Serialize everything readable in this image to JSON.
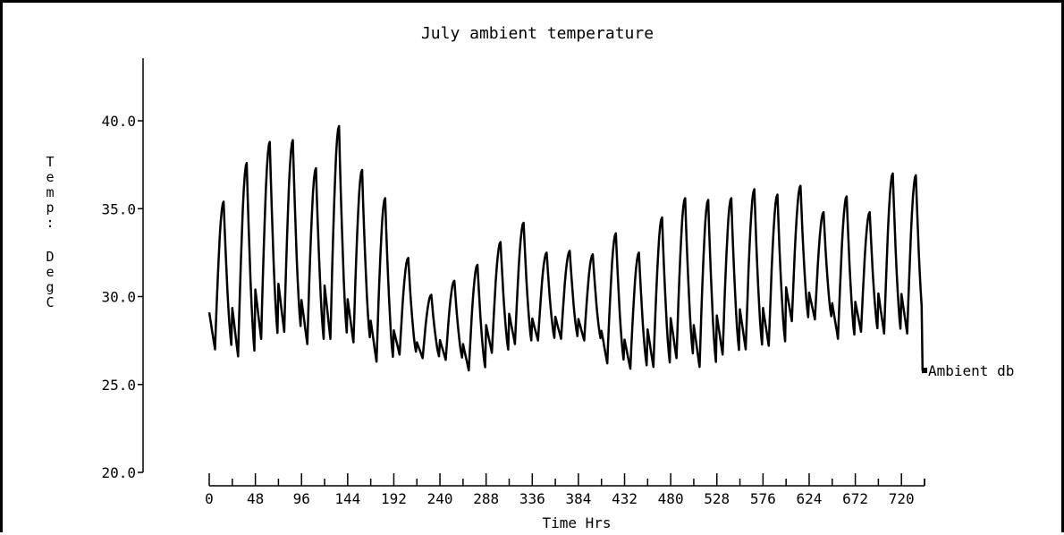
{
  "chart_data": {
    "type": "line",
    "title": "July ambient temperature",
    "xlabel": "Time Hrs",
    "ylabel": "Temp: DegC",
    "ylabel_chars": [
      "T",
      "e",
      "m",
      "p",
      ":",
      "D",
      "e",
      "g",
      "C"
    ],
    "xlim": [
      0,
      744
    ],
    "ylim": [
      20,
      44
    ],
    "x_ticks": [
      0,
      48,
      96,
      144,
      192,
      240,
      288,
      336,
      384,
      432,
      480,
      528,
      576,
      624,
      672,
      720
    ],
    "x_tick_labels": [
      "0",
      "48",
      "96",
      "144",
      "192",
      "240",
      "288",
      "336",
      "384",
      "432",
      "480",
      "528",
      "576",
      "624",
      "672",
      "720"
    ],
    "y_ticks": [
      20,
      25,
      30,
      35,
      40
    ],
    "y_tick_labels": [
      "20.0",
      "25.0",
      "30.0",
      "35.0",
      "40.0"
    ],
    "grid": false,
    "series": [
      {
        "name": "Ambient db",
        "color": "#000000",
        "daily_min_max": [
          [
            27.0,
            35.4
          ],
          [
            26.6,
            37.6
          ],
          [
            27.6,
            38.8
          ],
          [
            28.0,
            38.9
          ],
          [
            27.3,
            37.3
          ],
          [
            27.6,
            39.7
          ],
          [
            27.4,
            37.2
          ],
          [
            26.3,
            35.6
          ],
          [
            26.7,
            32.2
          ],
          [
            26.5,
            30.1
          ],
          [
            26.4,
            30.9
          ],
          [
            25.8,
            31.8
          ],
          [
            26.8,
            33.1
          ],
          [
            27.3,
            34.2
          ],
          [
            27.5,
            32.5
          ],
          [
            27.6,
            32.6
          ],
          [
            27.5,
            32.4
          ],
          [
            26.2,
            33.6
          ],
          [
            25.9,
            32.5
          ],
          [
            26.0,
            34.5
          ],
          [
            26.5,
            35.6
          ],
          [
            26.0,
            35.5
          ],
          [
            26.7,
            35.6
          ],
          [
            27.0,
            36.1
          ],
          [
            27.2,
            35.8
          ],
          [
            28.6,
            36.3
          ],
          [
            28.7,
            34.8
          ],
          [
            27.6,
            35.7
          ],
          [
            28.0,
            34.8
          ],
          [
            27.9,
            37.0
          ],
          [
            27.9,
            36.9
          ]
        ],
        "end_value": 25.8
      }
    ]
  }
}
